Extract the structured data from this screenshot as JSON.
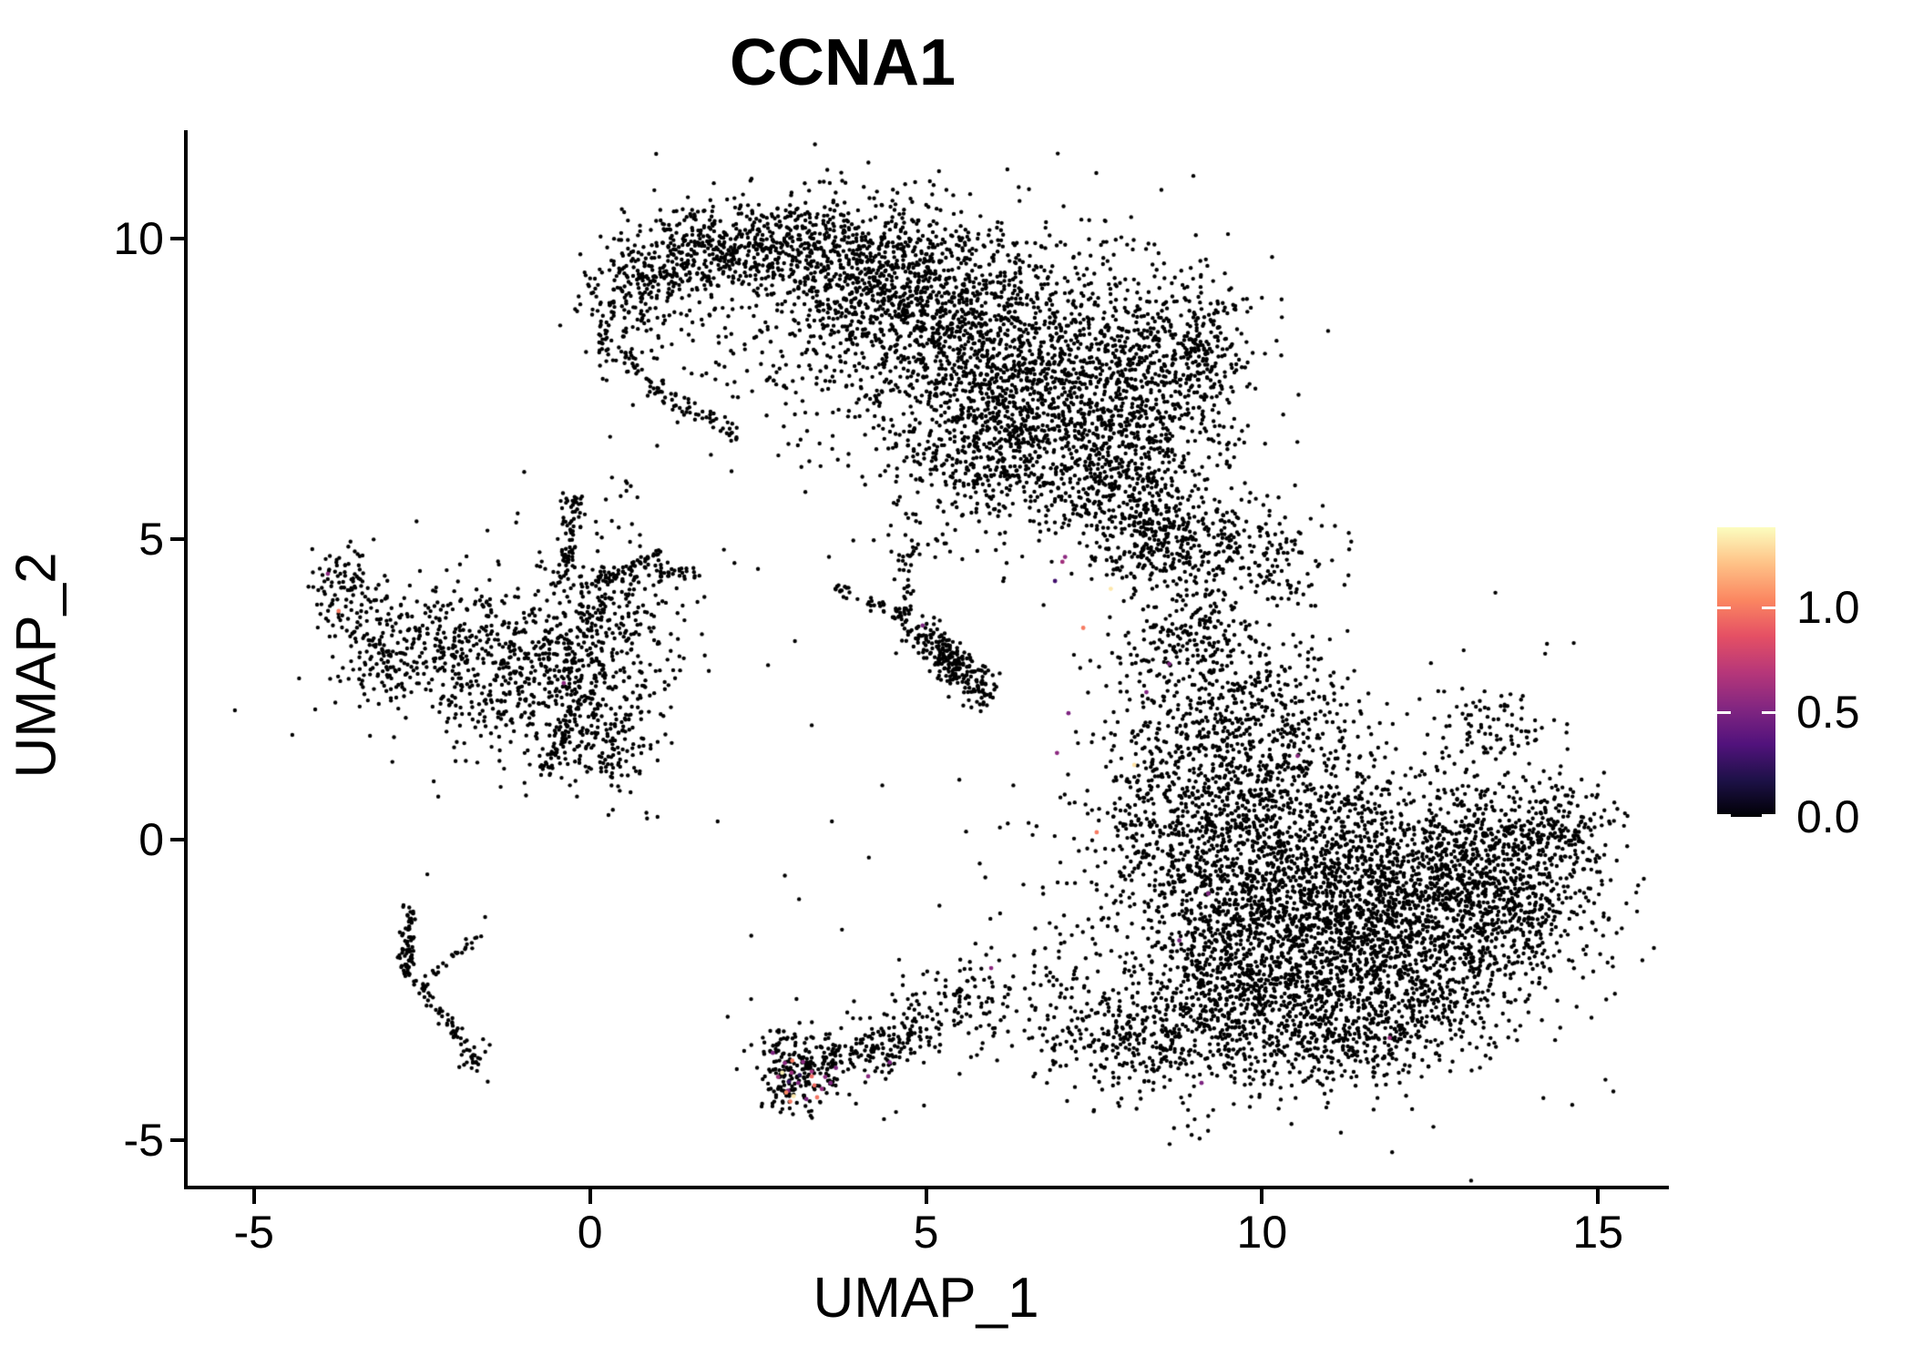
{
  "title": "CCNA1",
  "axes": {
    "x": {
      "label": "UMAP_1",
      "ticks": [
        -5,
        0,
        5,
        10,
        15
      ]
    },
    "y": {
      "label": "UMAP_2",
      "ticks": [
        -5,
        0,
        5,
        10
      ]
    }
  },
  "legend": {
    "ticks": [
      {
        "label": "1.0",
        "value": 1.0
      },
      {
        "label": "0.5",
        "value": 0.5
      },
      {
        "label": "0.0",
        "value": 0.0
      }
    ],
    "domain": [
      0,
      1.383
    ],
    "colormap_name": "magma",
    "colormap": [
      [
        0.0,
        "#000004"
      ],
      [
        0.125,
        "#1D1147"
      ],
      [
        0.25,
        "#51127C"
      ],
      [
        0.375,
        "#822681"
      ],
      [
        0.5,
        "#B73779"
      ],
      [
        0.625,
        "#E55064"
      ],
      [
        0.75,
        "#FB8761"
      ],
      [
        0.875,
        "#FEC287"
      ],
      [
        1.0,
        "#FCFDBF"
      ]
    ]
  },
  "chart_data": {
    "type": "scatter",
    "title": "CCNA1",
    "xlabel": "UMAP_1",
    "ylabel": "UMAP_2",
    "xlim": [
      -6,
      16
    ],
    "ylim": [
      -5.76,
      11.8
    ],
    "grid": false,
    "legend_position": "right",
    "point_color_default": "#000000",
    "point_radius": 2.2,
    "color_scale": {
      "name": "magma",
      "domain": [
        0,
        1.383
      ],
      "legend_ticks": [
        0.0,
        0.5,
        1.0
      ]
    },
    "seed": 42,
    "note": "UMAP feature plot; non-expressing cells are black, expressing cells colored by magma scale. Clusters given as gaussian blobs [cx,cy,sx,sy,rotDeg,n] and segments [x1,y1,x2,y2,width,n] in UMAP coordinates.",
    "clusters": [
      {
        "name": "top-crescent",
        "blobs": [
          [
            5.4,
            8.6,
            1.6,
            0.9,
            -15,
            1500
          ],
          [
            6.8,
            7.0,
            1.2,
            0.9,
            -25,
            900
          ],
          [
            4.2,
            9.5,
            0.9,
            0.5,
            -8,
            450
          ],
          [
            2.6,
            9.9,
            0.7,
            0.35,
            8,
            320
          ],
          [
            1.4,
            9.7,
            0.5,
            0.4,
            30,
            220
          ],
          [
            0.6,
            9.0,
            0.35,
            0.45,
            0,
            150
          ],
          [
            8.3,
            7.6,
            0.7,
            1.0,
            0,
            420
          ],
          [
            9.1,
            8.2,
            0.35,
            0.6,
            0,
            160
          ],
          [
            7.9,
            5.9,
            0.5,
            0.6,
            0,
            200
          ],
          [
            8.3,
            4.9,
            0.35,
            0.5,
            0,
            110
          ],
          [
            5.9,
            6.3,
            0.8,
            0.5,
            -20,
            260
          ],
          [
            2.0,
            8.4,
            0.9,
            0.8,
            0,
            70
          ],
          [
            5.5,
            8.2,
            2.2,
            1.5,
            0,
            180
          ]
        ],
        "segs": [
          [
            0.15,
            8.4,
            1.1,
            7.35,
            0.09,
            55
          ],
          [
            1.1,
            7.35,
            2.2,
            6.75,
            0.09,
            45
          ]
        ]
      },
      {
        "name": "right-mass",
        "blobs": [
          [
            10.9,
            -1.3,
            1.6,
            1.2,
            0,
            2300
          ],
          [
            12.4,
            -0.9,
            1.1,
            0.9,
            10,
            800
          ],
          [
            13.7,
            -0.3,
            0.7,
            0.6,
            15,
            350
          ],
          [
            14.5,
            0.2,
            0.35,
            0.35,
            0,
            90
          ],
          [
            9.7,
            -2.6,
            0.8,
            0.7,
            0,
            500
          ],
          [
            9.5,
            0.3,
            0.8,
            0.9,
            0,
            550
          ],
          [
            10.2,
            1.8,
            0.7,
            0.8,
            0,
            350
          ],
          [
            9.1,
            3.2,
            0.55,
            0.8,
            0,
            280
          ],
          [
            9.3,
            4.9,
            0.85,
            0.45,
            -10,
            300
          ],
          [
            8.0,
            -3.3,
            0.9,
            0.5,
            -15,
            320
          ],
          [
            11.3,
            -3.4,
            0.7,
            0.35,
            10,
            160
          ],
          [
            8.3,
            1.5,
            0.5,
            1.3,
            0,
            220
          ],
          [
            11.0,
            -0.5,
            2.3,
            1.8,
            0,
            250
          ],
          [
            12.2,
            -2.6,
            0.9,
            0.5,
            20,
            220
          ],
          [
            13.5,
            1.9,
            0.4,
            0.3,
            0,
            70
          ],
          [
            13.9,
            -1.2,
            0.45,
            0.4,
            0,
            110
          ]
        ],
        "segs": []
      },
      {
        "name": "left-cluster",
        "blobs": [
          [
            -3.65,
            4.25,
            0.22,
            0.35,
            0,
            90
          ],
          [
            -3.15,
            3.1,
            0.3,
            0.45,
            0,
            140
          ],
          [
            -2.3,
            3.3,
            0.4,
            0.5,
            0,
            150
          ],
          [
            -1.45,
            2.9,
            0.45,
            0.6,
            0,
            180
          ],
          [
            -0.45,
            2.7,
            0.55,
            0.75,
            0,
            340
          ],
          [
            0.35,
            3.7,
            0.5,
            0.6,
            0,
            220
          ],
          [
            0.2,
            1.7,
            0.5,
            0.45,
            0,
            160
          ],
          [
            -1.2,
            3.1,
            1.6,
            1.1,
            0,
            110
          ],
          [
            0.45,
            5.85,
            0.1,
            0.1,
            0,
            6
          ]
        ],
        "segs": [
          [
            -0.35,
            4.3,
            -0.25,
            5.75,
            0.07,
            70
          ],
          [
            0.1,
            4.3,
            1.05,
            4.75,
            0.07,
            55
          ],
          [
            0.9,
            4.4,
            1.6,
            4.45,
            0.06,
            30
          ],
          [
            -0.2,
            2.2,
            -0.65,
            1.0,
            0.07,
            45
          ]
        ]
      },
      {
        "name": "lower-left-streak",
        "blobs": [
          [
            -2.7,
            -1.9,
            0.08,
            0.15,
            0,
            25
          ],
          [
            -1.72,
            -3.62,
            0.13,
            0.12,
            0,
            22
          ]
        ],
        "segs": [
          [
            -2.67,
            -1.05,
            -2.72,
            -2.25,
            0.05,
            50
          ],
          [
            -2.62,
            -2.3,
            -1.78,
            -3.55,
            0.06,
            55
          ],
          [
            -2.33,
            -2.2,
            -1.63,
            -1.58,
            0.05,
            22
          ]
        ]
      },
      {
        "name": "mid-small-cluster",
        "blobs": [
          [
            5.35,
            3.0,
            0.35,
            0.18,
            -35,
            80
          ],
          [
            5.1,
            4.85,
            0.15,
            0.1,
            0,
            8
          ]
        ],
        "segs": [
          [
            3.6,
            4.25,
            4.65,
            3.7,
            0.07,
            40
          ],
          [
            4.72,
            4.75,
            4.68,
            3.65,
            0.06,
            35
          ],
          [
            4.8,
            3.55,
            6.0,
            2.25,
            0.16,
            170
          ]
        ]
      },
      {
        "name": "bottom-center-cluster",
        "blobs": [
          [
            3.05,
            -4.0,
            0.25,
            0.28,
            0,
            130
          ],
          [
            5.7,
            -2.6,
            0.4,
            0.35,
            0,
            90
          ],
          [
            2.85,
            -3.35,
            0.15,
            0.15,
            0,
            25
          ],
          [
            3.8,
            -3.5,
            0.9,
            0.5,
            0,
            60
          ]
        ],
        "segs": [
          [
            3.25,
            -3.85,
            5.1,
            -3.05,
            0.22,
            190
          ]
        ]
      },
      {
        "name": "inter-cluster-sparse",
        "blobs": [
          [
            4.7,
            5.5,
            0.2,
            0.5,
            0,
            14
          ]
        ],
        "segs": []
      }
    ],
    "singles": [
      [
        -1.56,
        -1.29
      ],
      [
        -2.42,
        -0.58
      ],
      [
        -2.63,
        -1.2
      ],
      [
        2.15,
        4.6
      ],
      [
        2.5,
        4.5
      ],
      [
        6.3,
        0.9
      ],
      [
        6.1,
        0.2
      ],
      [
        5.8,
        -0.4
      ],
      [
        6.45,
        -0.75
      ],
      [
        2.4,
        -1.6
      ],
      [
        1.9,
        0.3
      ],
      [
        3.3,
        1.9
      ],
      [
        7.1,
        -4.35
      ],
      [
        7.5,
        -4.5
      ],
      [
        6.8,
        -4.05
      ],
      [
        9.2,
        -4.6
      ],
      [
        0.85,
        0.35
      ],
      [
        4.35,
        0.9
      ],
      [
        4.15,
        -0.3
      ],
      [
        3.75,
        -1.5
      ],
      [
        4.6,
        -2.0
      ],
      [
        5.2,
        -1.1
      ],
      [
        2.65,
        2.9
      ],
      [
        3.05,
        3.3
      ],
      [
        6.55,
        5.3
      ],
      [
        6.2,
        4.6
      ],
      [
        6.75,
        3.9
      ],
      [
        7.4,
        -0.15
      ],
      [
        7.0,
        0.7
      ],
      [
        6.6,
        -1.9
      ],
      [
        5.5,
        -3.9
      ],
      [
        15.0,
        0.9
      ],
      [
        14.9,
        -0.5
      ],
      [
        1.0,
        6.55
      ],
      [
        1.8,
        6.4
      ],
      [
        0.3,
        6.7
      ],
      [
        5.3,
        5.9
      ],
      [
        5.75,
        5.5
      ],
      [
        3.6,
        0.3
      ],
      [
        2.9,
        -0.6
      ],
      [
        8.9,
        -4.5
      ],
      [
        10.5,
        -4.3
      ]
    ],
    "expressing_cells": [
      [
        -3.9,
        4.42,
        0.55
      ],
      [
        -3.74,
        3.8,
        1.0
      ],
      [
        -0.39,
        2.6,
        0.55
      ],
      [
        4.95,
        3.56,
        0.5
      ],
      [
        7.12,
        2.1,
        0.5
      ],
      [
        6.95,
        1.44,
        0.55
      ],
      [
        8.1,
        1.24,
        1.3
      ],
      [
        7.54,
        0.12,
        1.0
      ],
      [
        7.07,
        4.7,
        0.55
      ],
      [
        7.03,
        4.62,
        0.62
      ],
      [
        6.92,
        4.3,
        0.3
      ],
      [
        7.34,
        3.52,
        1.0
      ],
      [
        8.62,
        2.92,
        0.5
      ],
      [
        8.28,
        2.45,
        0.52
      ],
      [
        7.75,
        4.17,
        1.32
      ],
      [
        10.53,
        1.39,
        0.55
      ],
      [
        9.2,
        -0.9,
        0.5
      ],
      [
        8.77,
        -1.68,
        0.5
      ],
      [
        11.9,
        -3.3,
        0.6
      ],
      [
        9.1,
        -4.05,
        0.5
      ],
      [
        2.72,
        -3.55,
        0.5
      ],
      [
        2.9,
        -3.72,
        0.55
      ],
      [
        3.0,
        -3.88,
        0.6
      ],
      [
        3.1,
        -4.05,
        0.5
      ],
      [
        3.17,
        -3.7,
        0.55
      ],
      [
        3.3,
        -3.86,
        0.62
      ],
      [
        2.95,
        -4.18,
        0.55
      ],
      [
        3.22,
        -4.32,
        0.5
      ],
      [
        3.5,
        -3.95,
        0.55
      ],
      [
        3.66,
        -3.8,
        0.5
      ],
      [
        3.45,
        -4.15,
        0.58
      ],
      [
        2.8,
        -3.95,
        0.62
      ],
      [
        3.58,
        -4.05,
        0.52
      ],
      [
        3.01,
        -3.68,
        1.0
      ],
      [
        3.3,
        -3.94,
        0.95
      ],
      [
        2.92,
        -4.21,
        1.05
      ],
      [
        2.98,
        -4.36,
        1.0
      ],
      [
        3.34,
        -4.09,
        0.95
      ],
      [
        3.38,
        -4.29,
        0.98
      ],
      [
        2.86,
        -3.88,
        1.35
      ],
      [
        3.03,
        -4.27,
        1.32
      ],
      [
        2.96,
        -4.03,
        0.25
      ],
      [
        3.12,
        -3.92,
        0.22
      ],
      [
        4.14,
        -3.94,
        0.55
      ],
      [
        4.46,
        -3.71,
        0.5
      ],
      [
        5.97,
        -2.14,
        0.55
      ]
    ]
  }
}
